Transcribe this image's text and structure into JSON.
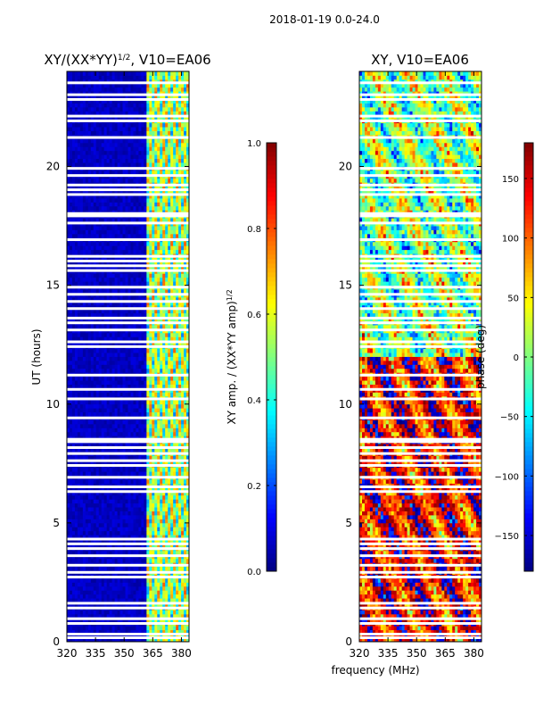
{
  "suptitle": "2018-01-19 0.0-24.0",
  "xlabel_shared": "frequency (MHz)",
  "chart_data": [
    {
      "type": "heatmap",
      "title_prefix": "XY/(XX*YY)",
      "title_sup": "1/2",
      "title_suffix": ", V10=EA06",
      "ylabel": "UT (hours)",
      "xlim": [
        320,
        384
      ],
      "ylim": [
        0,
        24
      ],
      "xticks": [
        320,
        335,
        350,
        365,
        380
      ],
      "xtick_labels": [
        "320",
        "335",
        "350",
        "365",
        "380"
      ],
      "yticks": [
        0,
        5,
        10,
        15,
        20
      ],
      "ytick_labels": [
        "0",
        "5",
        "10",
        "15",
        "20"
      ],
      "colorbar": {
        "label_prefix": "XY amp. / (XX*YY amp)",
        "label_sup": "1/2",
        "range": [
          0.0,
          1.0
        ],
        "ticks": [
          0.0,
          0.2,
          0.4,
          0.6,
          0.8,
          1.0
        ],
        "tick_labels": [
          "0.0",
          "0.2",
          "0.4",
          "0.6",
          "0.8",
          "1.0"
        ],
        "colormap": "jet"
      },
      "flagged_hours": [
        0.15,
        0.3,
        0.75,
        0.95,
        1.4,
        1.6,
        2.7,
        2.9,
        3.2,
        3.6,
        3.9,
        4.1,
        4.3,
        6.3,
        6.5,
        6.9,
        7.4,
        7.6,
        7.9,
        8.15,
        8.4,
        8.5,
        9.4,
        10.2,
        10.6,
        11.2,
        12.4,
        12.6,
        13.1,
        13.4,
        13.6,
        14.0,
        14.3,
        14.6,
        14.9,
        15.6,
        15.8,
        16.0,
        16.2,
        16.9,
        17.6,
        17.9,
        18.0,
        18.8,
        19.0,
        19.2,
        19.6,
        19.9,
        21.2,
        21.9,
        22.1,
        22.8,
        23.0,
        23.5
      ],
      "band_structure": "low amplitude (~0.05) below 362 MHz; high amplitude (0.3-0.8) between 362 and 384 MHz"
    },
    {
      "type": "heatmap",
      "title": "XY, V10=EA06",
      "xlim": [
        320,
        384
      ],
      "ylim": [
        0,
        24
      ],
      "xticks": [
        320,
        335,
        350,
        365,
        380
      ],
      "xtick_labels": [
        "320",
        "335",
        "350",
        "365",
        "380"
      ],
      "yticks": [
        0,
        5,
        10,
        15,
        20
      ],
      "ytick_labels": [
        "0",
        "5",
        "10",
        "15",
        "20"
      ],
      "colorbar": {
        "label": "phase (deg)",
        "range": [
          -180,
          180
        ],
        "ticks": [
          -150,
          -100,
          -50,
          0,
          50,
          100,
          150
        ],
        "tick_labels": [
          "−150",
          "−100",
          "−50",
          "0",
          "50",
          "100",
          "150"
        ],
        "colormap": "jet"
      },
      "flagged_hours": [
        0.15,
        0.3,
        0.75,
        0.95,
        1.4,
        1.6,
        2.7,
        2.9,
        3.2,
        3.6,
        3.9,
        4.1,
        4.3,
        6.3,
        6.5,
        6.9,
        7.4,
        7.6,
        7.9,
        8.15,
        8.4,
        8.5,
        9.4,
        10.2,
        10.6,
        11.2,
        12.4,
        12.6,
        13.1,
        13.4,
        13.6,
        14.0,
        14.3,
        14.6,
        14.9,
        15.6,
        15.8,
        16.0,
        16.2,
        16.9,
        17.6,
        17.9,
        18.0,
        18.8,
        19.0,
        19.2,
        19.6,
        19.9,
        21.2,
        21.9,
        22.1,
        22.8,
        23.0,
        23.5
      ],
      "band_structure": "phase dominated by ~+150 deg (red) below 12 h and mixed -180..180 above"
    }
  ]
}
